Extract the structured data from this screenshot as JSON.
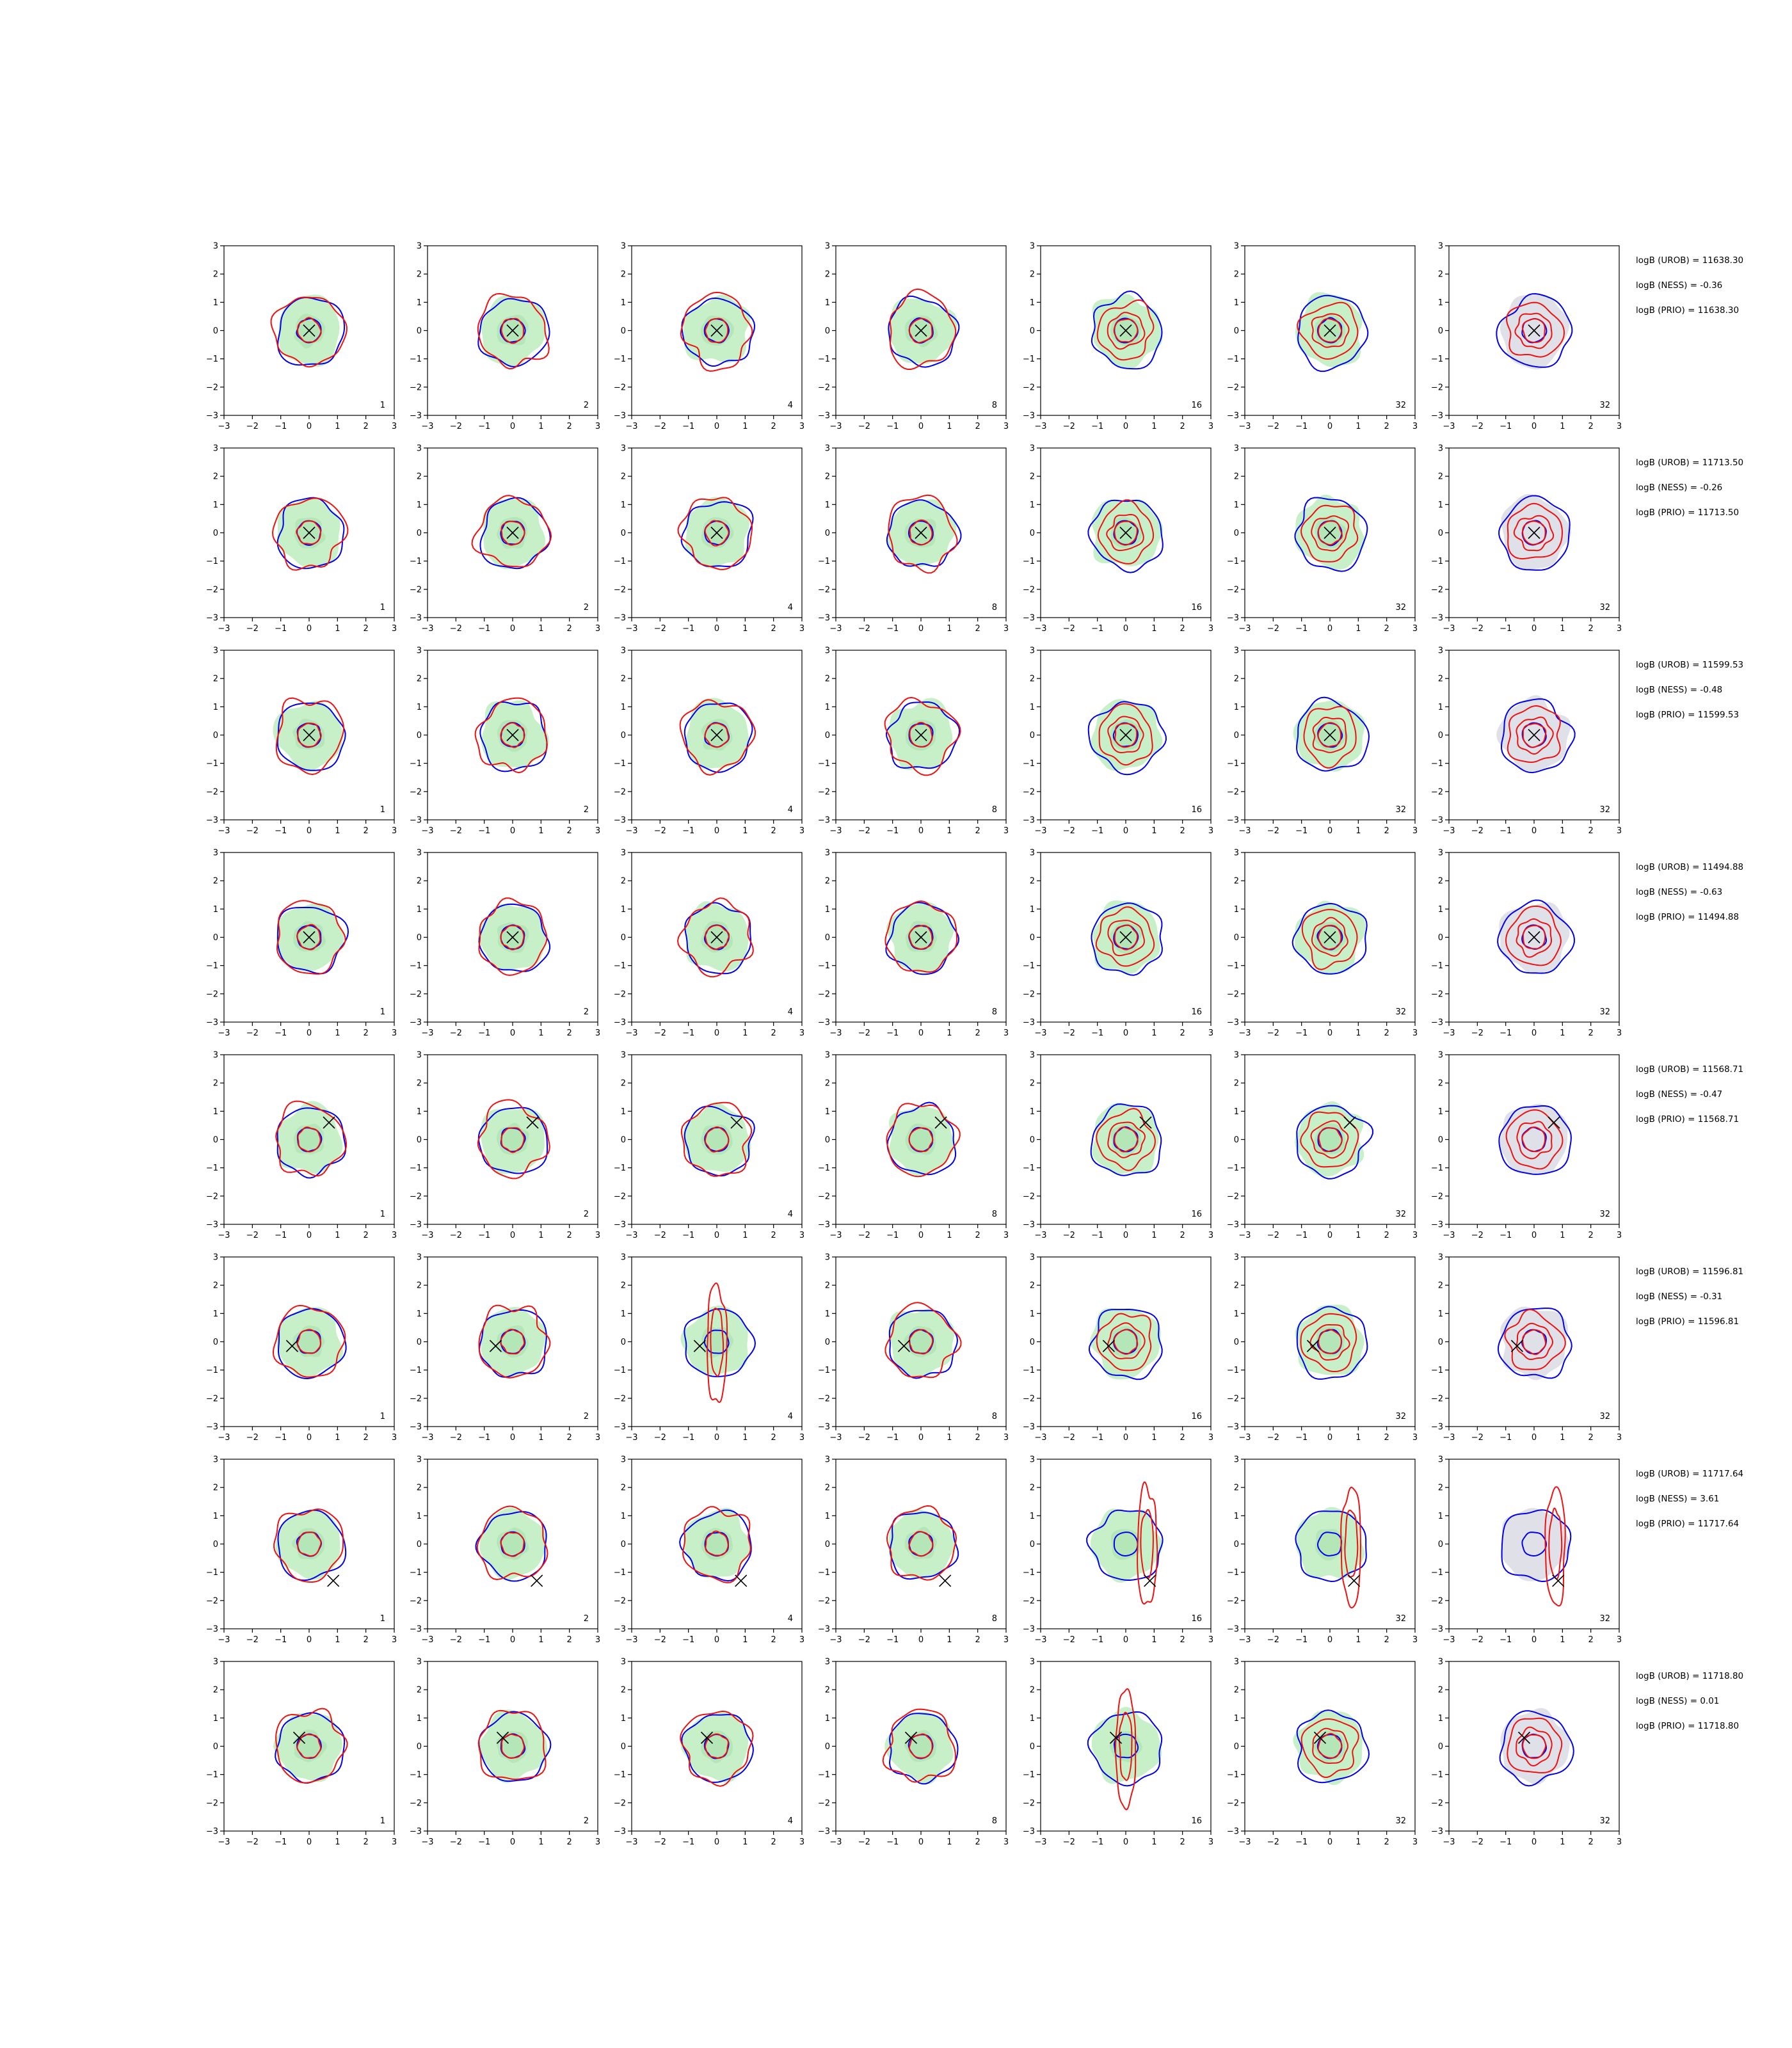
{
  "chart_data": {
    "type": "grid of 2D density contour plots",
    "rows": 8,
    "columns": 7,
    "xlim": [
      -3,
      3
    ],
    "ylim": [
      -3,
      3
    ],
    "xticks": [
      "−3",
      "−2",
      "−1",
      "0",
      "1",
      "2",
      "3"
    ],
    "yticks": [
      "3",
      "2",
      "1",
      "0",
      "−1",
      "−2",
      "−3"
    ],
    "column_labels": [
      "1",
      "2",
      "4",
      "8",
      "16",
      "32",
      "32"
    ],
    "last_column_background": "grey",
    "colors": {
      "filled_density": "#c8f0c8",
      "grey_density": "#e0e0e8",
      "blue_contour": "#0000ee",
      "red_contour": "#ee1111",
      "marker": "#000000"
    },
    "marker_symbol": "×",
    "rows_data": [
      {
        "marker": [
          0.0,
          0.0
        ],
        "annotations": [
          "logB (UROB) = 11638.30",
          "logB (NESS) = -0.36",
          "logB (PRIO) = 11638.30"
        ]
      },
      {
        "marker": [
          0.0,
          0.0
        ],
        "annotations": [
          "logB (UROB) = 11713.50",
          "logB (NESS) = -0.26",
          "logB (PRIO) = 11713.50"
        ]
      },
      {
        "marker": [
          0.0,
          0.0
        ],
        "annotations": [
          "logB (UROB) = 11599.53",
          "logB (NESS) = -0.48",
          "logB (PRIO) = 11599.53"
        ]
      },
      {
        "marker": [
          0.0,
          0.0
        ],
        "annotations": [
          "logB (UROB) = 11494.88",
          "logB (NESS) = -0.63",
          "logB (PRIO) = 11494.88"
        ]
      },
      {
        "marker": [
          0.7,
          0.6
        ],
        "annotations": [
          "logB (UROB) = 11568.71",
          "logB (NESS) = -0.47",
          "logB (PRIO) = 11568.71"
        ]
      },
      {
        "marker": [
          -0.6,
          -0.15
        ],
        "annotations": [
          "logB (UROB) = 11596.81",
          "logB (NESS) = -0.31",
          "logB (PRIO) = 11596.81"
        ]
      },
      {
        "marker": [
          0.85,
          -1.3
        ],
        "annotations": [
          "logB (UROB) = 11717.64",
          "logB (NESS) = 3.61",
          "logB (PRIO) = 11717.64"
        ]
      },
      {
        "marker": [
          -0.35,
          0.3
        ],
        "annotations": [
          "logB (UROB) = 11718.80",
          "logB (NESS) = 0.01",
          "logB (PRIO) = 11718.80"
        ]
      }
    ],
    "elongated_red_panels": [
      [
        5,
        2
      ],
      [
        6,
        4
      ],
      [
        6,
        5
      ],
      [
        6,
        6
      ],
      [
        7,
        4
      ]
    ]
  }
}
